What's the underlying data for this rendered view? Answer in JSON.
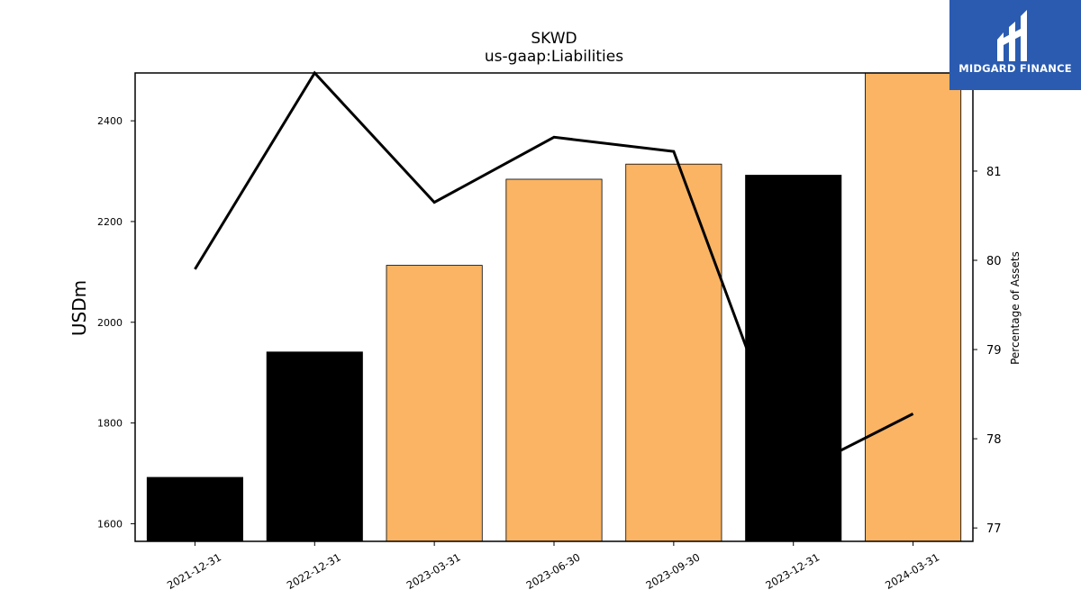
{
  "chart_data": {
    "type": "bar",
    "title": "SKWD",
    "subtitle": "us-gaap:Liabilities",
    "ylabel": "USDm",
    "ylabel_right": "Percentage of Assets",
    "categories": [
      "2021-12-31",
      "2022-12-31",
      "2023-03-31",
      "2023-06-30",
      "2023-09-30",
      "2023-12-31",
      "2024-03-31"
    ],
    "series": [
      {
        "name": "Liabilities",
        "type": "bar",
        "axis": "left",
        "values": [
          1692,
          1941,
          2113,
          2284,
          2314,
          2292,
          2498
        ],
        "colors": [
          "#000000",
          "#000000",
          "#fbb463",
          "#fbb463",
          "#fbb463",
          "#000000",
          "#fbb463"
        ]
      },
      {
        "name": "Percentage of Assets",
        "type": "line",
        "axis": "right",
        "values": [
          79.9,
          82.1,
          80.65,
          81.38,
          81.22,
          77.6,
          78.28
        ],
        "color": "#000000"
      }
    ],
    "ylim": [
      1565,
      2495
    ],
    "ylim_right": [
      76.85,
      82.1
    ],
    "yticks": [
      1600,
      1800,
      2000,
      2200,
      2400
    ],
    "yticks_right": [
      77,
      78,
      79,
      80,
      81
    ],
    "grid": false
  },
  "logo": {
    "text": "MIDGARD FINANCE",
    "bg": "#2a5bb0"
  }
}
